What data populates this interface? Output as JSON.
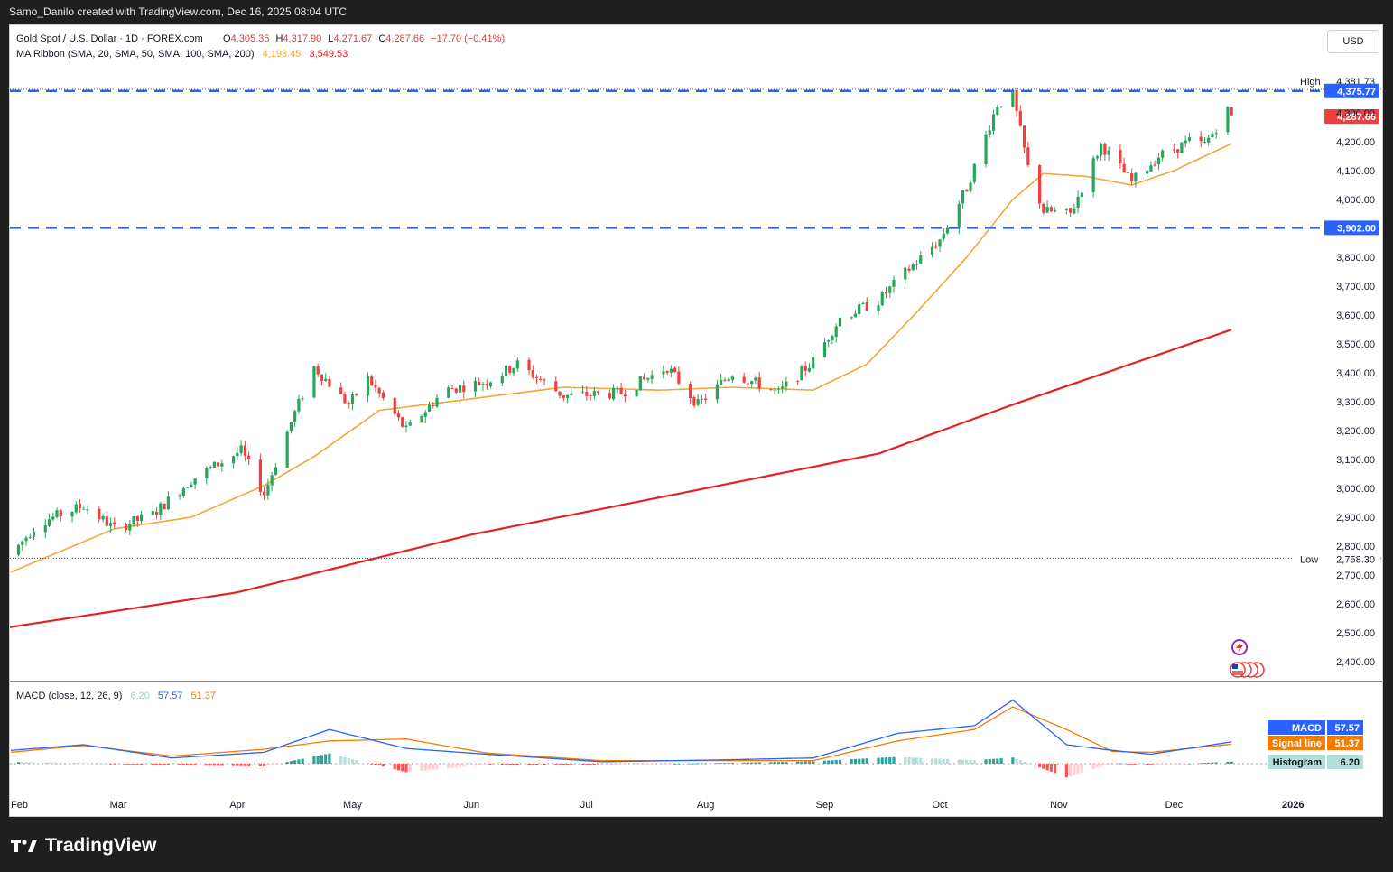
{
  "header": {
    "created_by": "Samo_Danilo created with TradingView.com, Dec 16, 2025 08:04 UTC"
  },
  "legend": {
    "symbol": "Gold Spot / U.S. Dollar · 1D · FOREX.com",
    "open_label": "O",
    "open": "4,305.35",
    "high_label": "H",
    "high": "4,317.90",
    "low_label": "L",
    "low": "4,271.67",
    "close_label": "C",
    "close": "4,287.66",
    "change": "−17.70 (−0.41%)",
    "ma_title": "MA Ribbon (SMA, 20, SMA, 50, SMA, 100, SMA, 200)",
    "ma20": "4,193.45",
    "ma200": "3,549.53"
  },
  "currency_button": "USD",
  "price_axis": {
    "ticks": [
      {
        "v": 4300,
        "label": "4,300.00"
      },
      {
        "v": 4200,
        "label": "4,200.00"
      },
      {
        "v": 4100,
        "label": "4,100.00"
      },
      {
        "v": 4000,
        "label": "4,000.00"
      },
      {
        "v": 3800,
        "label": "3,800.00"
      },
      {
        "v": 3700,
        "label": "3,700.00"
      },
      {
        "v": 3600,
        "label": "3,600.00"
      },
      {
        "v": 3500,
        "label": "3,500.00"
      },
      {
        "v": 3400,
        "label": "3,400.00"
      },
      {
        "v": 3300,
        "label": "3,300.00"
      },
      {
        "v": 3200,
        "label": "3,200.00"
      },
      {
        "v": 3100,
        "label": "3,100.00"
      },
      {
        "v": 3000,
        "label": "3,000.00"
      },
      {
        "v": 2900,
        "label": "2,900.00"
      },
      {
        "v": 2800,
        "label": "2,800.00"
      },
      {
        "v": 2700,
        "label": "2,700.00"
      },
      {
        "v": 2600,
        "label": "2,600.00"
      },
      {
        "v": 2500,
        "label": "2,500.00"
      },
      {
        "v": 2400,
        "label": "2,400.00"
      }
    ],
    "high_label": "High",
    "high_value": "4,381.73",
    "high_price": 4381.73,
    "low_label": "Low",
    "low_value": "2,758.30",
    "low_price": 2758.3,
    "resistance_label": "4,375.77",
    "resistance_price": 4375.77,
    "support_label": "3,902.00",
    "support_price": 3902,
    "last_label": "4,287.66",
    "last_price": 4287.66
  },
  "macd": {
    "title": "MACD (close, 12, 26, 9)",
    "hist": "6.20",
    "macd": "57.57",
    "signal": "51.37",
    "macd_label": "MACD",
    "signal_label": "Signal line",
    "hist_label": "Histogram"
  },
  "time_axis": [
    "Feb",
    "Mar",
    "Apr",
    "May",
    "Jun",
    "Jul",
    "Aug",
    "Sep",
    "Oct",
    "Nov",
    "Dec",
    "2026"
  ],
  "brand": "TradingView",
  "colors": {
    "up": "#26a65b",
    "down": "#ef3f3f",
    "ma20": "#f4a63a",
    "ma200": "#e52222",
    "level": "#2962ff",
    "macd": "#2962ff",
    "signal": "#f57c00"
  },
  "chart_data": {
    "type": "candlestick",
    "title": "Gold Spot / U.S. Dollar · 1D · FOREX.com",
    "ylim": [
      2350,
      4460
    ],
    "x_start": "2025-02-01",
    "x_end": "2026-01-08",
    "price_path": [
      {
        "date": "2025-02-01",
        "price": 2770
      },
      {
        "date": "2025-02-08",
        "price": 2880
      },
      {
        "date": "2025-02-20",
        "price": 2940
      },
      {
        "date": "2025-02-28",
        "price": 2860
      },
      {
        "date": "2025-03-10",
        "price": 2910
      },
      {
        "date": "2025-03-20",
        "price": 3030
      },
      {
        "date": "2025-04-02",
        "price": 3130
      },
      {
        "date": "2025-04-08",
        "price": 2980
      },
      {
        "date": "2025-04-15",
        "price": 3230
      },
      {
        "date": "2025-04-21",
        "price": 3420
      },
      {
        "date": "2025-04-30",
        "price": 3290
      },
      {
        "date": "2025-05-05",
        "price": 3380
      },
      {
        "date": "2025-05-15",
        "price": 3200
      },
      {
        "date": "2025-05-25",
        "price": 3340
      },
      {
        "date": "2025-06-05",
        "price": 3370
      },
      {
        "date": "2025-06-13",
        "price": 3430
      },
      {
        "date": "2025-06-25",
        "price": 3320
      },
      {
        "date": "2025-07-10",
        "price": 3330
      },
      {
        "date": "2025-07-22",
        "price": 3420
      },
      {
        "date": "2025-07-30",
        "price": 3290
      },
      {
        "date": "2025-08-08",
        "price": 3400
      },
      {
        "date": "2025-08-20",
        "price": 3330
      },
      {
        "date": "2025-08-29",
        "price": 3440
      },
      {
        "date": "2025-09-05",
        "price": 3590
      },
      {
        "date": "2025-09-15",
        "price": 3650
      },
      {
        "date": "2025-09-23",
        "price": 3760
      },
      {
        "date": "2025-10-01",
        "price": 3860
      },
      {
        "date": "2025-10-08",
        "price": 4040
      },
      {
        "date": "2025-10-16",
        "price": 4330
      },
      {
        "date": "2025-10-20",
        "price": 4360
      },
      {
        "date": "2025-10-24",
        "price": 4110
      },
      {
        "date": "2025-10-28",
        "price": 3960
      },
      {
        "date": "2025-11-04",
        "price": 3950
      },
      {
        "date": "2025-11-12",
        "price": 4190
      },
      {
        "date": "2025-11-20",
        "price": 4060
      },
      {
        "date": "2025-11-27",
        "price": 4150
      },
      {
        "date": "2025-12-05",
        "price": 4200
      },
      {
        "date": "2025-12-09",
        "price": 4190
      },
      {
        "date": "2025-12-15",
        "price": 4310
      },
      {
        "date": "2025-12-16",
        "price": 4287.66
      }
    ],
    "sma20_path": [
      {
        "date": "2025-02-01",
        "price": 2710
      },
      {
        "date": "2025-02-28",
        "price": 2860
      },
      {
        "date": "2025-03-20",
        "price": 2900
      },
      {
        "date": "2025-04-08",
        "price": 3010
      },
      {
        "date": "2025-04-21",
        "price": 3110
      },
      {
        "date": "2025-05-08",
        "price": 3270
      },
      {
        "date": "2025-06-01",
        "price": 3310
      },
      {
        "date": "2025-06-25",
        "price": 3350
      },
      {
        "date": "2025-07-20",
        "price": 3340
      },
      {
        "date": "2025-08-08",
        "price": 3350
      },
      {
        "date": "2025-08-29",
        "price": 3340
      },
      {
        "date": "2025-09-12",
        "price": 3430
      },
      {
        "date": "2025-09-25",
        "price": 3610
      },
      {
        "date": "2025-10-08",
        "price": 3800
      },
      {
        "date": "2025-10-20",
        "price": 4000
      },
      {
        "date": "2025-10-28",
        "price": 4090
      },
      {
        "date": "2025-11-08",
        "price": 4080
      },
      {
        "date": "2025-11-20",
        "price": 4050
      },
      {
        "date": "2025-12-01",
        "price": 4100
      },
      {
        "date": "2025-12-09",
        "price": 4150
      },
      {
        "date": "2025-12-16",
        "price": 4193.45
      }
    ],
    "sma200_path": [
      {
        "date": "2025-02-01",
        "price": 2520
      },
      {
        "date": "2025-04-01",
        "price": 2640
      },
      {
        "date": "2025-06-01",
        "price": 2840
      },
      {
        "date": "2025-08-01",
        "price": 3000
      },
      {
        "date": "2025-09-15",
        "price": 3120
      },
      {
        "date": "2025-10-20",
        "price": 3290
      },
      {
        "date": "2025-12-16",
        "price": 3549.53
      }
    ],
    "macd_path": [
      {
        "date": "2025-02-01",
        "macd": 35,
        "signal": 30
      },
      {
        "date": "2025-02-20",
        "macd": 50,
        "signal": 48
      },
      {
        "date": "2025-03-15",
        "macd": 15,
        "signal": 20
      },
      {
        "date": "2025-04-08",
        "macd": 30,
        "signal": 38
      },
      {
        "date": "2025-04-25",
        "macd": 90,
        "signal": 60
      },
      {
        "date": "2025-05-15",
        "macd": 40,
        "signal": 65
      },
      {
        "date": "2025-06-05",
        "macd": 25,
        "signal": 28
      },
      {
        "date": "2025-07-05",
        "macd": 5,
        "signal": 8
      },
      {
        "date": "2025-08-05",
        "macd": 10,
        "signal": 8
      },
      {
        "date": "2025-08-29",
        "macd": 15,
        "signal": 8
      },
      {
        "date": "2025-09-20",
        "macd": 80,
        "signal": 60
      },
      {
        "date": "2025-10-10",
        "macd": 100,
        "signal": 90
      },
      {
        "date": "2025-10-20",
        "macd": 168,
        "signal": 150
      },
      {
        "date": "2025-11-03",
        "macd": 50,
        "signal": 90
      },
      {
        "date": "2025-11-15",
        "macd": 35,
        "signal": 32
      },
      {
        "date": "2025-11-25",
        "macd": 25,
        "signal": 30
      },
      {
        "date": "2025-12-16",
        "macd": 57.57,
        "signal": 51.37
      }
    ]
  }
}
